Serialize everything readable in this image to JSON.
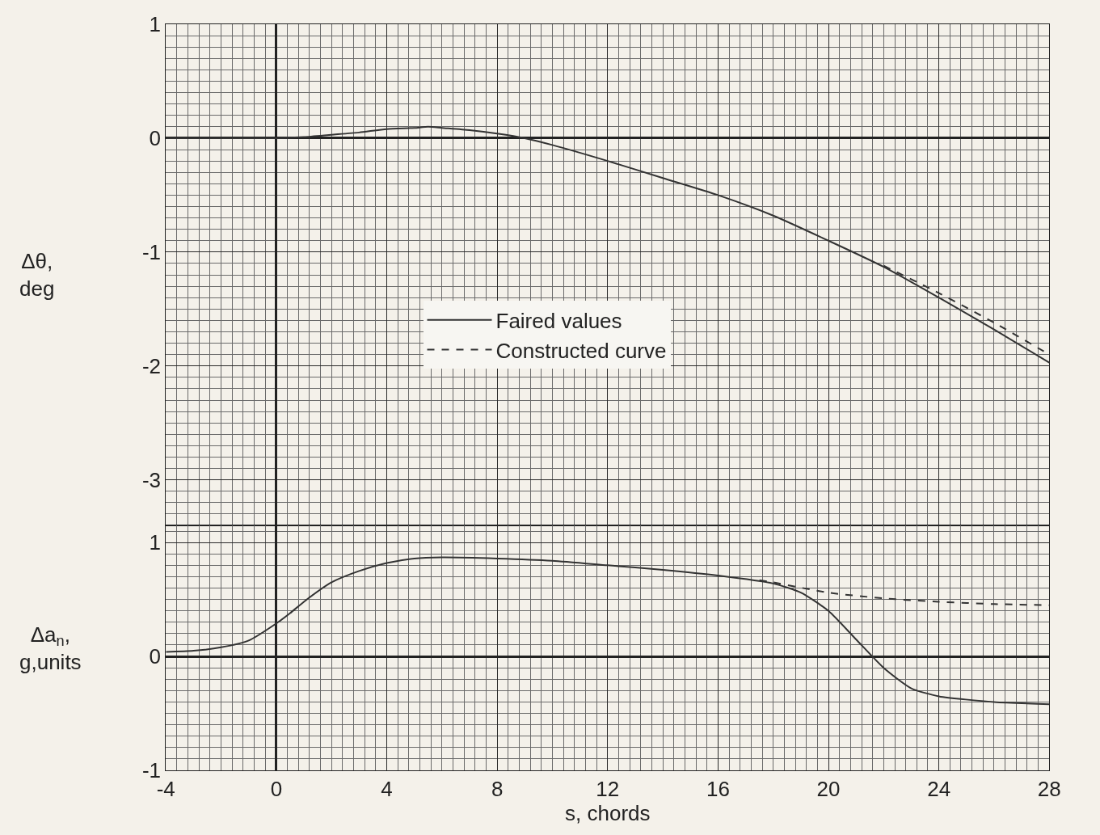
{
  "chart_data": [
    {
      "type": "line",
      "ylabel": "Δθ,\ndeg",
      "xlim": [
        -4,
        28
      ],
      "xticks": [
        -4,
        0,
        4,
        8,
        12,
        16,
        20,
        24,
        28
      ],
      "ylim": [
        -3.4,
        1
      ],
      "yticks": [
        -3,
        -2,
        -1,
        0,
        1
      ],
      "grid": true,
      "legend": "bottom",
      "tick_labels": "y",
      "series": [
        {
          "name": "Faired values",
          "color": "#333333",
          "line_style": "solid",
          "x": [
            -4,
            -2,
            0,
            1,
            2,
            3,
            4,
            5,
            5.5,
            6,
            7,
            8,
            9,
            10,
            12,
            14,
            16,
            18,
            20,
            22,
            24,
            26,
            28
          ],
          "values": [
            0,
            0,
            0,
            0.01,
            0.03,
            0.05,
            0.08,
            0.09,
            0.1,
            0.09,
            0.07,
            0.04,
            0,
            -0.06,
            -0.2,
            -0.35,
            -0.5,
            -0.68,
            -0.9,
            -1.13,
            -1.4,
            -1.68,
            -1.97
          ]
        },
        {
          "name": "Constructed curve",
          "color": "#333333",
          "line_style": "dashed",
          "x": [
            22,
            24,
            26,
            28
          ],
          "values": [
            -1.12,
            -1.36,
            -1.62,
            -1.9
          ]
        }
      ]
    },
    {
      "type": "line",
      "xlabel": "s, chords",
      "ylabel": "Δa$_{n}$,\ng,units",
      "xlim": [
        -4,
        28
      ],
      "xticks": [
        -4,
        0,
        4,
        8,
        12,
        16,
        20,
        24,
        28
      ],
      "ylim": [
        -1,
        1.15
      ],
      "yticks": [
        -1,
        0,
        1
      ],
      "grid": true,
      "series": [
        {
          "color": "#333333",
          "line_style": "solid",
          "x": [
            -4,
            -3,
            -2,
            -1,
            0,
            0.5,
            1,
            2,
            3,
            4,
            5,
            6,
            8,
            10,
            12,
            14,
            16,
            18,
            19,
            20,
            21,
            22,
            23,
            24,
            26,
            28
          ],
          "values": [
            0.04,
            0.05,
            0.08,
            0.14,
            0.29,
            0.38,
            0.48,
            0.65,
            0.75,
            0.82,
            0.86,
            0.87,
            0.86,
            0.84,
            0.8,
            0.76,
            0.71,
            0.64,
            0.56,
            0.4,
            0.15,
            -0.1,
            -0.28,
            -0.35,
            -0.4,
            -0.42
          ]
        },
        {
          "color": "#333333",
          "line_style": "dashed",
          "x": [
            17.5,
            18,
            20,
            22,
            24,
            26,
            28
          ],
          "values": [
            0.67,
            0.65,
            0.56,
            0.51,
            0.48,
            0.46,
            0.45
          ]
        }
      ]
    }
  ]
}
